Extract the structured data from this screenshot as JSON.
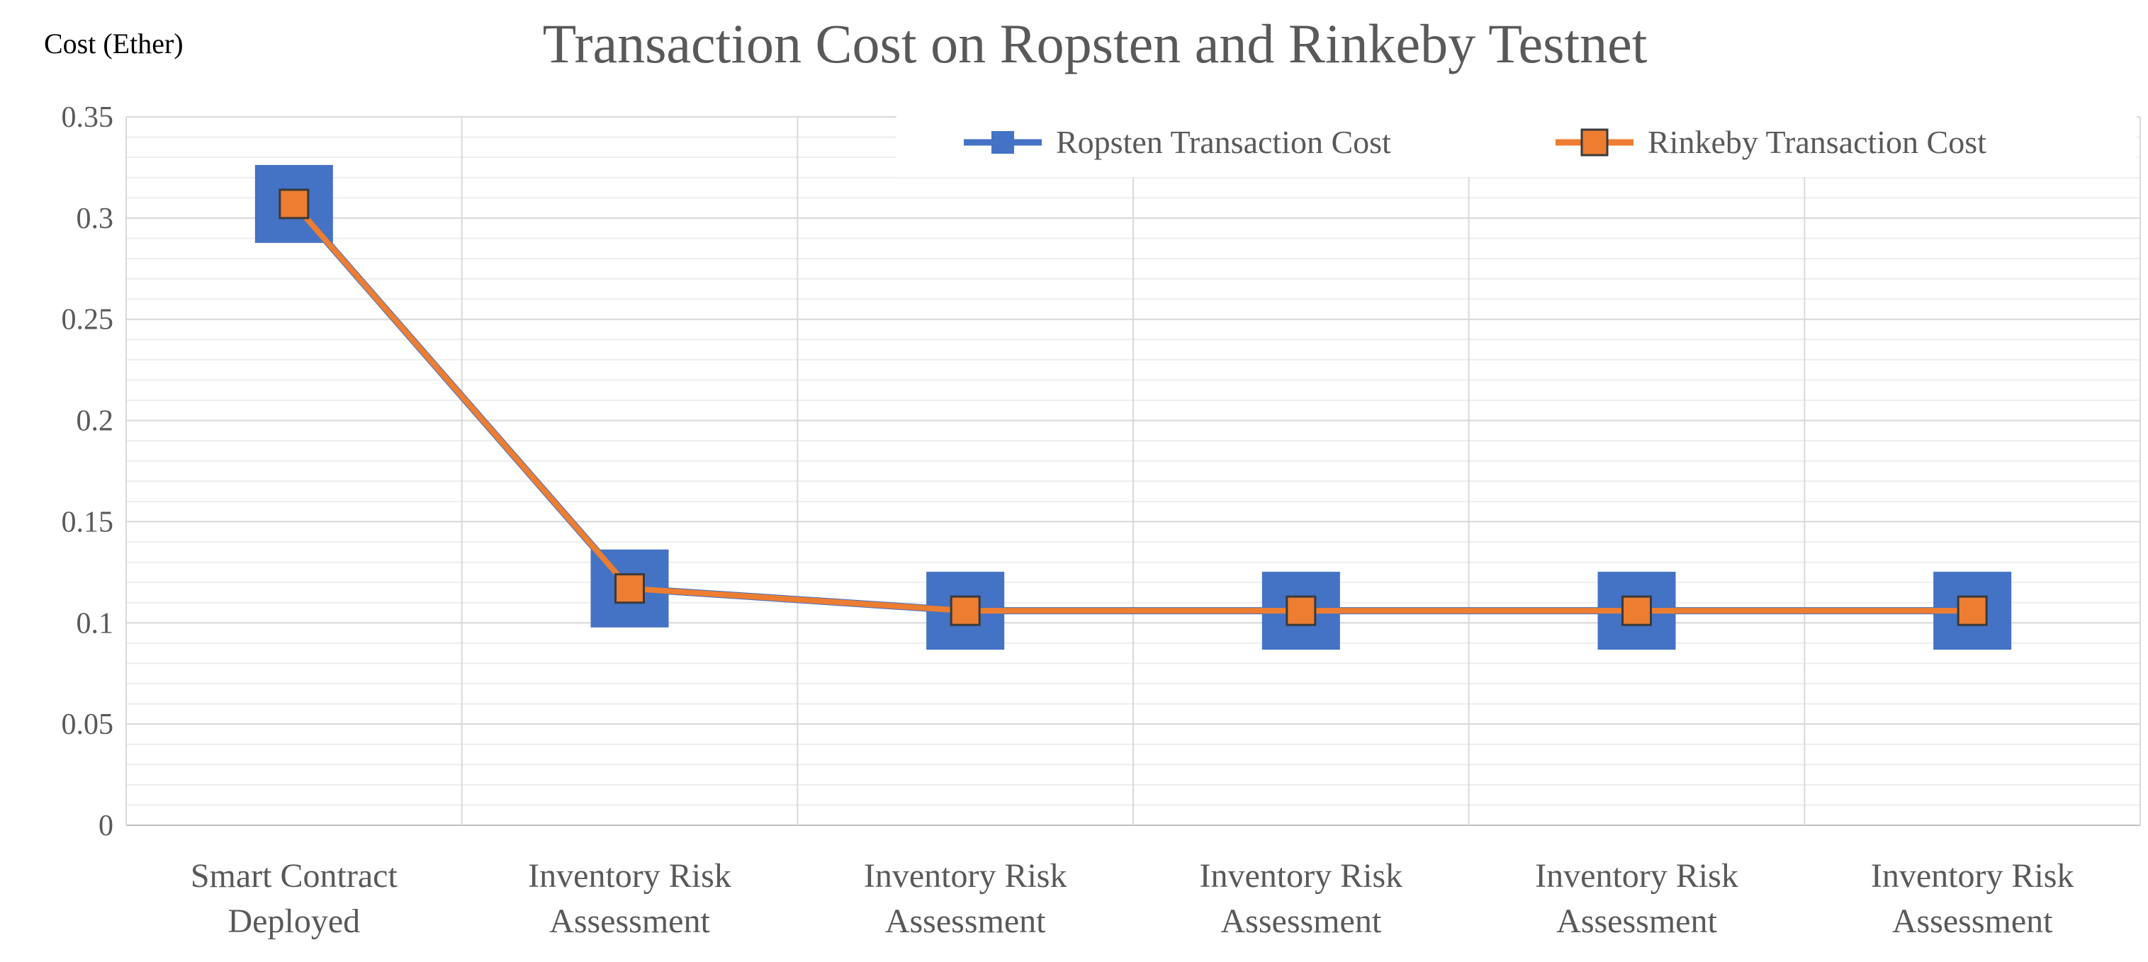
{
  "chart_data": {
    "type": "line",
    "title": "Transaction Cost on Ropsten and Rinkeby Testnet",
    "ylabel": "Cost (Ether)",
    "xlabel": "",
    "ylim": [
      0,
      0.35
    ],
    "yticks": [
      0,
      0.05,
      0.1,
      0.15,
      0.2,
      0.25,
      0.3,
      0.35
    ],
    "ytick_labels": [
      "0",
      "0.05",
      "0.1",
      "0.15",
      "0.2",
      "0.25",
      "0.3",
      "0.35"
    ],
    "categories": [
      [
        "Smart Contract",
        "Deployed"
      ],
      [
        "Inventory Risk",
        "Assessment"
      ],
      [
        "Inventory Risk",
        "Assessment"
      ],
      [
        "Inventory Risk",
        "Assessment"
      ],
      [
        "Inventory Risk",
        "Assessment"
      ],
      [
        "Inventory Risk",
        "Assessment"
      ]
    ],
    "grid": true,
    "legend_position": "top-right",
    "series": [
      {
        "name": "Ropsten Transaction Cost",
        "values": [
          0.307,
          0.117,
          0.106,
          0.106,
          0.106,
          0.106
        ],
        "color": "#4472C4",
        "marker": "square-large"
      },
      {
        "name": "Rinkeby Transaction Cost",
        "values": [
          0.307,
          0.117,
          0.106,
          0.106,
          0.106,
          0.106
        ],
        "color": "#ED7D31",
        "marker": "square-small"
      }
    ]
  }
}
